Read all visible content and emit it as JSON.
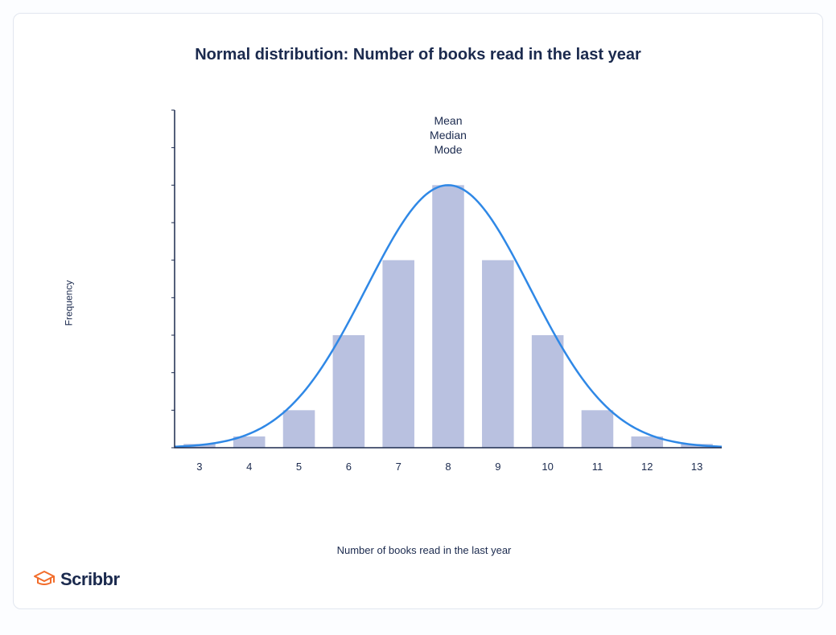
{
  "title": "Normal distribution: Number of books read in the last year",
  "axes": {
    "ylabel": "Frequency",
    "xlabel": "Number of books read in the last year",
    "ylim": [
      0,
      180
    ],
    "yticks": [
      0,
      20,
      40,
      60,
      80,
      100,
      120,
      140,
      160,
      180
    ],
    "xticks": [
      3,
      4,
      5,
      6,
      7,
      8,
      9,
      10,
      11,
      12,
      13
    ],
    "xrange": [
      2.5,
      13.5
    ]
  },
  "bars": {
    "categories": [
      3,
      4,
      5,
      6,
      7,
      8,
      9,
      10,
      11,
      12,
      13
    ],
    "values": [
      2,
      6,
      20,
      60,
      100,
      140,
      100,
      60,
      20,
      6,
      2
    ],
    "bar_color": "#b9c1e0",
    "bar_width": 0.64
  },
  "curve": {
    "mean": 8,
    "sigma": 1.65,
    "amplitude": 140,
    "color": "#2f88e6",
    "stroke_width": 2.5
  },
  "center_annotation": {
    "lines": [
      "Mean",
      "Median",
      "Mode"
    ],
    "x": 8,
    "fontsize": 14,
    "color": "#1b2a4e"
  },
  "style": {
    "background": "#ffffff",
    "card_border": "#e1e6ef",
    "text_color": "#1b2a4e",
    "title_fontsize": 20,
    "axis_fontsize": 13
  },
  "brand": {
    "name": "Scribbr",
    "icon_color": "#f26c2a",
    "text_color": "#1b2a4e"
  }
}
